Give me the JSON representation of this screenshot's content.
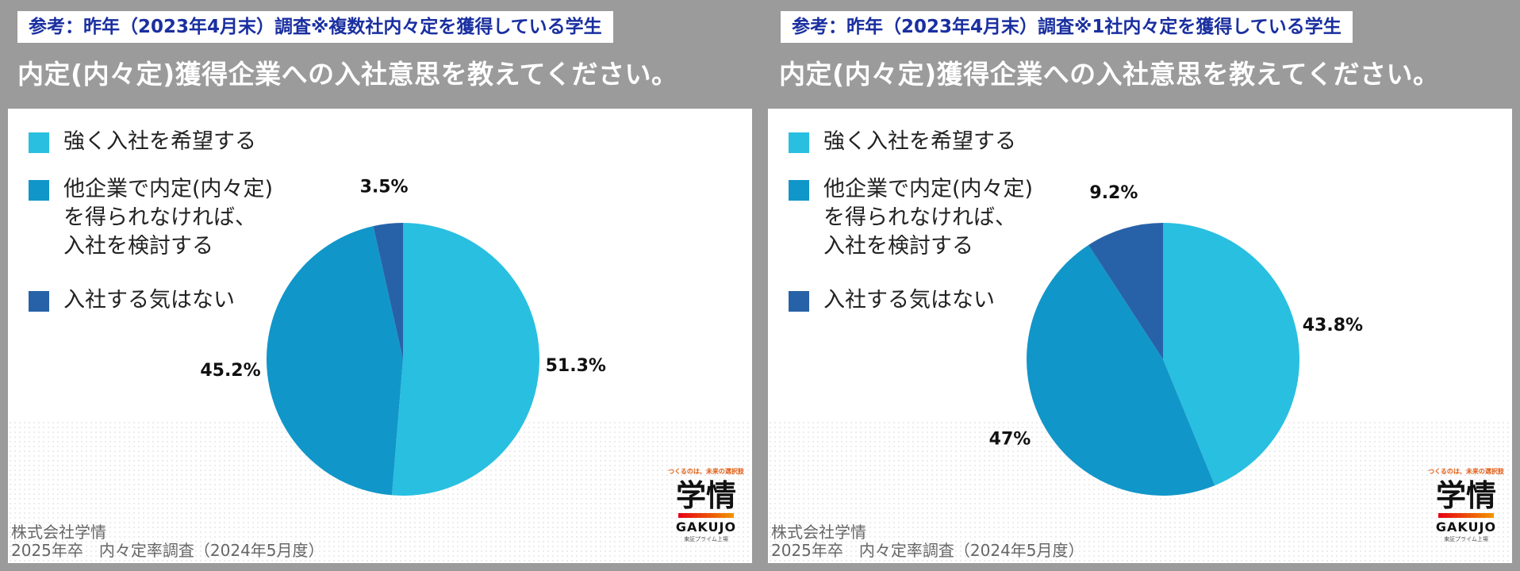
{
  "legend": [
    {
      "label": "強く入社を希望する",
      "color": "#29bfe0"
    },
    {
      "label": "他企業で内定(内々定)\nを得られなければ、\n入社を検討する",
      "color": "#1196c9"
    },
    {
      "label": "入社する気はない",
      "color": "#2762a8"
    }
  ],
  "footer": {
    "line1": "株式会社学情",
    "line2": "2025年卒　内々定率調査（2024年5月度）"
  },
  "logo": {
    "tagline": "つくるのは、未来の選択肢",
    "mark": "学情",
    "brand": "GAKUJO",
    "sub": "東証プライム上場"
  },
  "panels": [
    {
      "tag": "参考：昨年（2023年4月末）調査※複数社内々定を獲得している学生",
      "heading": "内定(内々定)獲得企業への入社意思を教えてください。"
    },
    {
      "tag": "参考：昨年（2023年4月末）調査※1社内々定を獲得している学生",
      "heading": "内定(内々定)獲得企業への入社意思を教えてください。"
    }
  ],
  "chart_data": [
    {
      "type": "pie",
      "title": "内定(内々定)獲得企業への入社意思を教えてください。",
      "categories": [
        "強く入社を希望する",
        "他企業で内定(内々定)を得られなければ、入社を検討する",
        "入社する気はない"
      ],
      "values": [
        51.3,
        45.2,
        3.5
      ],
      "labels": [
        "51.3%",
        "45.2%",
        "3.5%"
      ],
      "colors": [
        "#29bfe0",
        "#1196c9",
        "#2762a8"
      ]
    },
    {
      "type": "pie",
      "title": "内定(内々定)獲得企業への入社意思を教えてください。",
      "categories": [
        "強く入社を希望する",
        "他企業で内定(内々定)を得られなければ、入社を検討する",
        "入社する気はない"
      ],
      "values": [
        43.8,
        47,
        9.2
      ],
      "labels": [
        "43.8%",
        "47%",
        "9.2%"
      ],
      "colors": [
        "#29bfe0",
        "#1196c9",
        "#2762a8"
      ]
    }
  ]
}
